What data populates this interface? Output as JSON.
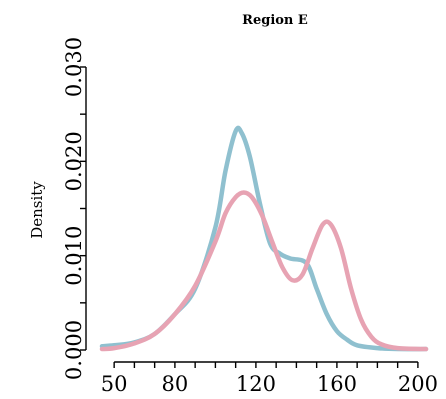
{
  "chart_data": {
    "type": "line",
    "title": "Region E",
    "ylabel": "Density",
    "xlabel": "",
    "xlim": [
      44,
      204
    ],
    "ylim": [
      0,
      0.03
    ],
    "x_ticks": [
      50,
      80,
      120,
      160,
      200
    ],
    "y_ticks": [
      0.0,
      0.01,
      0.02,
      0.03
    ],
    "y_tick_labels": [
      "0.000",
      "0.010",
      "0.020",
      "0.030"
    ],
    "grid": false,
    "series": [
      {
        "color": "#8fc0cf",
        "points": [
          [
            44,
            0.0004
          ],
          [
            50,
            0.0005
          ],
          [
            60,
            0.0008
          ],
          [
            70,
            0.0017
          ],
          [
            80,
            0.0038
          ],
          [
            90,
            0.0065
          ],
          [
            100,
            0.013
          ],
          [
            105,
            0.019
          ],
          [
            110,
            0.0232
          ],
          [
            113,
            0.023
          ],
          [
            117,
            0.0205
          ],
          [
            122,
            0.0155
          ],
          [
            127,
            0.0113
          ],
          [
            132,
            0.0102
          ],
          [
            137,
            0.0097
          ],
          [
            145,
            0.0092
          ],
          [
            150,
            0.0065
          ],
          [
            155,
            0.0038
          ],
          [
            160,
            0.002
          ],
          [
            165,
            0.0011
          ],
          [
            170,
            0.0005
          ],
          [
            180,
            0.0002
          ],
          [
            190,
            0.0001
          ],
          [
            204,
            0.0001
          ]
        ]
      },
      {
        "color": "#e7a3b3",
        "points": [
          [
            44,
            0.0001
          ],
          [
            50,
            0.0002
          ],
          [
            60,
            0.0007
          ],
          [
            70,
            0.0017
          ],
          [
            80,
            0.0038
          ],
          [
            90,
            0.0068
          ],
          [
            100,
            0.0115
          ],
          [
            105,
            0.0145
          ],
          [
            110,
            0.0162
          ],
          [
            114,
            0.0167
          ],
          [
            118,
            0.0162
          ],
          [
            123,
            0.0143
          ],
          [
            128,
            0.0115
          ],
          [
            133,
            0.0088
          ],
          [
            138,
            0.0074
          ],
          [
            143,
            0.008
          ],
          [
            148,
            0.0108
          ],
          [
            153,
            0.0133
          ],
          [
            157,
            0.0133
          ],
          [
            162,
            0.0108
          ],
          [
            167,
            0.0065
          ],
          [
            172,
            0.0032
          ],
          [
            177,
            0.0014
          ],
          [
            182,
            0.0006
          ],
          [
            190,
            0.0002
          ],
          [
            204,
            0.0001
          ]
        ]
      }
    ]
  }
}
